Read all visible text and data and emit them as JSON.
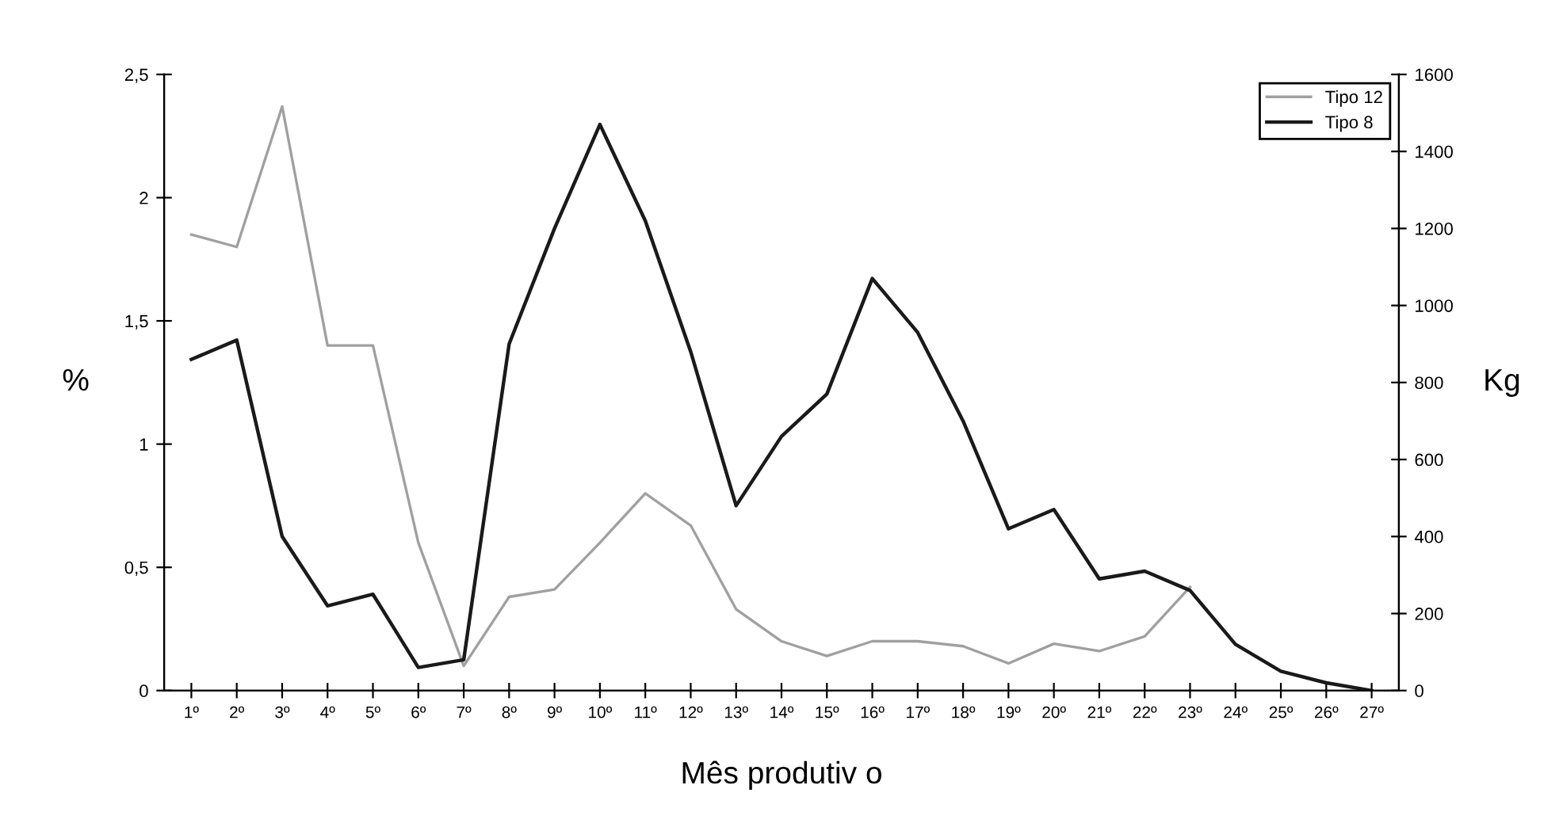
{
  "chart_data": {
    "type": "line",
    "xlabel": "Mês produtiv o",
    "ylabel": "%",
    "y2label": "Kg",
    "categories": [
      "1º",
      "2º",
      "3º",
      "4º",
      "5º",
      "6º",
      "7º",
      "8º",
      "9º",
      "10º",
      "11º",
      "12º",
      "13º",
      "14º",
      "15º",
      "16º",
      "17º",
      "18º",
      "19º",
      "20º",
      "21º",
      "22º",
      "23º",
      "24º",
      "25º",
      "26º",
      "27º"
    ],
    "series": [
      {
        "name": "Tipo 12",
        "color": "#a0a0a0",
        "values": [
          1.85,
          1.8,
          2.37,
          1.4,
          1.4,
          0.6,
          0.1,
          0.38,
          0.41,
          0.6,
          0.8,
          0.67,
          0.33,
          0.2,
          0.14,
          0.2,
          0.2,
          0.18,
          0.11,
          0.19,
          0.16,
          0.22,
          0.42,
          null,
          null,
          null,
          null
        ]
      },
      {
        "name": "Tipo 8",
        "color": "#1a1a1a",
        "axis": "y2",
        "values": [
          860,
          910,
          400,
          220,
          250,
          60,
          80,
          900,
          1200,
          1470,
          1220,
          880,
          480,
          660,
          770,
          1070,
          930,
          700,
          420,
          470,
          290,
          310,
          260,
          120,
          50,
          20,
          0
        ]
      }
    ],
    "ylim": [
      0,
      2.5
    ],
    "yticks": [
      0,
      {
        "value": 0.5,
        "label": "0,5"
      },
      1,
      {
        "value": 1.5,
        "label": "1,5"
      },
      2,
      {
        "value": 2.5,
        "label": "2,5"
      }
    ],
    "y2lim": [
      0,
      1600
    ],
    "y2ticks": [
      0,
      200,
      400,
      600,
      800,
      1000,
      1200,
      1400,
      1600
    ],
    "grid": false,
    "legend": "top right",
    "marker": "none",
    "line_style": "solid"
  }
}
